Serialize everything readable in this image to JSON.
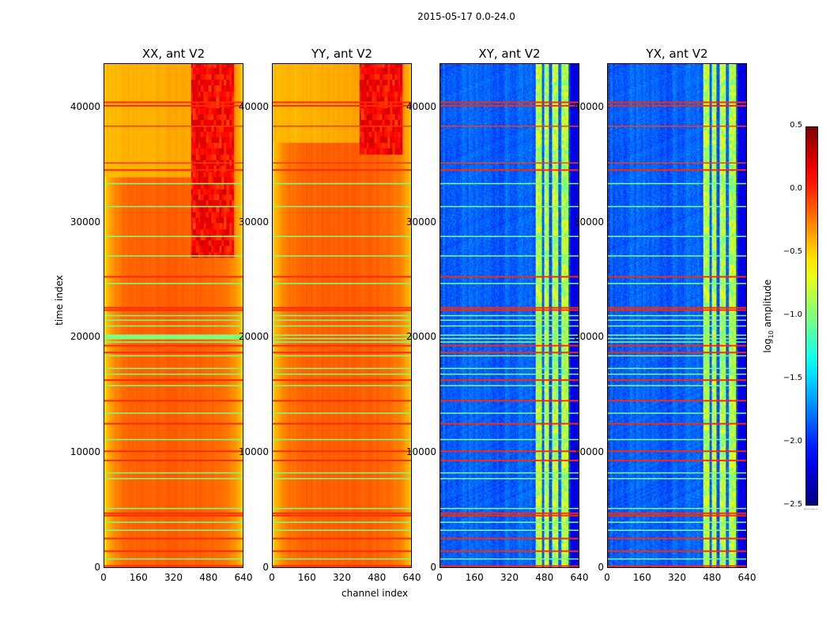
{
  "chart_data": {
    "type": "heatmap",
    "title": "2015-05-17 0.0-24.0",
    "xlabel": "channel index",
    "ylabel": "time index",
    "xlim": [
      0,
      640
    ],
    "ylim": [
      0,
      43840
    ],
    "xticks": [
      "0",
      "160",
      "320",
      "480",
      "640"
    ],
    "yticks": [
      "0",
      "10000",
      "20000",
      "30000",
      "40000"
    ],
    "panels": [
      {
        "title": "XX, ant V2",
        "kind": "auto"
      },
      {
        "title": "YY, ant V2",
        "kind": "auto"
      },
      {
        "title": "XY, ant V2",
        "kind": "cross"
      },
      {
        "title": "YX, ant V2",
        "kind": "cross"
      }
    ],
    "colorbar": {
      "label": "log₁₀ amplitude",
      "label_base": "log",
      "label_sub": "10",
      "label_rest": " amplitude",
      "range": [
        -2.5,
        0.5
      ],
      "ticks": [
        "0.5",
        "0.0",
        "−0.5",
        "−1.0",
        "−1.5",
        "−2.0",
        "−2.5"
      ],
      "colormap": "jet"
    },
    "flagged_time_rows": [
      {
        "t": 40500,
        "v": 0.0
      },
      {
        "t": 40200,
        "v": 0.0
      },
      {
        "t": 38400,
        "v": -0.05
      },
      {
        "t": 35200,
        "v": -0.05
      },
      {
        "t": 34600,
        "v": 0.0
      },
      {
        "t": 33400,
        "v": -1.0
      },
      {
        "t": 31400,
        "v": -1.0
      },
      {
        "t": 28800,
        "v": -1.0
      },
      {
        "t": 27100,
        "v": -1.0
      },
      {
        "t": 25300,
        "v": 0.0
      },
      {
        "t": 24700,
        "v": -1.0
      },
      {
        "t": 22600,
        "v": 0.0
      },
      {
        "t": 22400,
        "v": 0.0
      },
      {
        "t": 21900,
        "v": -1.0
      },
      {
        "t": 21500,
        "v": -1.0
      },
      {
        "t": 21000,
        "v": -1.0
      },
      {
        "t": 20200,
        "v": -1.0
      },
      {
        "t": 19900,
        "v": -1.0
      },
      {
        "t": 19600,
        "v": -1.0
      },
      {
        "t": 19300,
        "v": 0.0
      },
      {
        "t": 18700,
        "v": 0.0
      },
      {
        "t": 18400,
        "v": -1.0
      },
      {
        "t": 17300,
        "v": -1.0
      },
      {
        "t": 16800,
        "v": -1.0
      },
      {
        "t": 16300,
        "v": 0.0
      },
      {
        "t": 15800,
        "v": -1.0
      },
      {
        "t": 14500,
        "v": 0.0
      },
      {
        "t": 13400,
        "v": -1.0
      },
      {
        "t": 12500,
        "v": 0.0
      },
      {
        "t": 11100,
        "v": -1.0
      },
      {
        "t": 10100,
        "v": 0.0
      },
      {
        "t": 9300,
        "v": 0.0
      },
      {
        "t": 8200,
        "v": -1.0
      },
      {
        "t": 7700,
        "v": -1.0
      },
      {
        "t": 5100,
        "v": -1.0
      },
      {
        "t": 4700,
        "v": 0.0
      },
      {
        "t": 4500,
        "v": 0.0
      },
      {
        "t": 3900,
        "v": -1.0
      },
      {
        "t": 3200,
        "v": -1.0
      },
      {
        "t": 2500,
        "v": 0.0
      },
      {
        "t": 1400,
        "v": 0.0
      },
      {
        "t": 700,
        "v": -1.0
      },
      {
        "t": 100,
        "v": 0.0
      }
    ]
  }
}
